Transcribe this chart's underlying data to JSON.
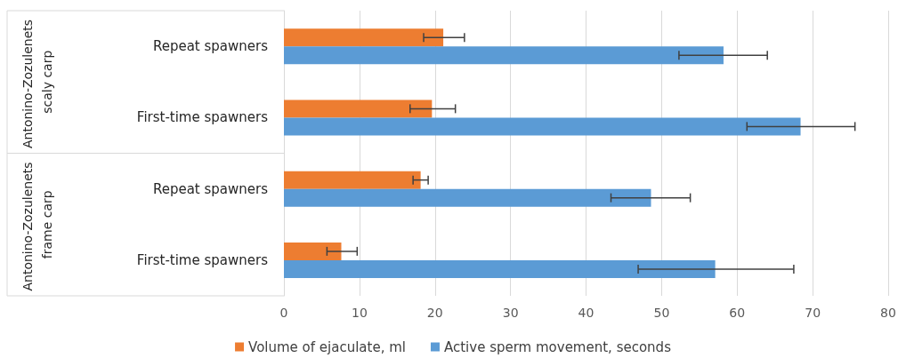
{
  "chart_data": {
    "type": "bar",
    "orientation": "horizontal",
    "categories": [
      "Repeat spawners",
      "First-time spawners",
      "Repeat spawners",
      "First-time spawners"
    ],
    "series": [
      {
        "name": "Volume of ejaculate, ml",
        "color": "#ed7d31",
        "values": [
          21.1,
          19.6,
          18.1,
          7.6
        ],
        "errors": [
          [
            18.5,
            23.9
          ],
          [
            16.7,
            22.7
          ],
          [
            17.1,
            19.1
          ],
          [
            5.7,
            9.7
          ]
        ]
      },
      {
        "name": "Active sperm movement, seconds",
        "color": "#5b9bd5",
        "values": [
          58.2,
          68.4,
          48.6,
          57.1
        ],
        "errors": [
          [
            52.3,
            64.0
          ],
          [
            61.3,
            75.6
          ],
          [
            43.3,
            53.8
          ],
          [
            46.9,
            67.5
          ]
        ]
      }
    ],
    "annotations": [
      "Antonino-Zozulenets scaly carp",
      "Antonino-Zozulenets frame carp"
    ],
    "xlim": [
      0,
      80
    ],
    "xticks": [
      0,
      10,
      20,
      30,
      40,
      50,
      60,
      70,
      80
    ],
    "grid": "x",
    "legend": "bottom"
  }
}
